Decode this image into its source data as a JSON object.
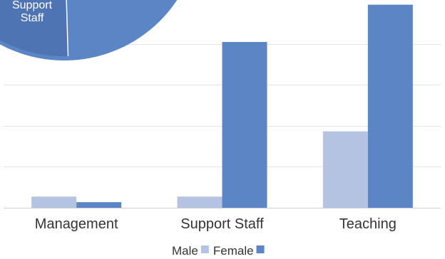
{
  "chart_data": [
    {
      "type": "pie",
      "partial": true,
      "labels": [
        "Support Staff"
      ],
      "label_lines": [
        "Support",
        "Staff"
      ],
      "colors": [
        "#4e74b3",
        "#5b85c4"
      ]
    },
    {
      "type": "bar",
      "categories": [
        "Management",
        "Support Staff",
        "Teaching"
      ],
      "series": [
        {
          "name": "Male",
          "color": "#b4c3e1",
          "values": [
            6,
            6,
            41
          ]
        },
        {
          "name": "Female",
          "color": "#5b85c4",
          "values": [
            3,
            89,
            109
          ]
        }
      ],
      "ylim": [
        0,
        110
      ],
      "grid": true,
      "legend_position": "bottom"
    }
  ]
}
